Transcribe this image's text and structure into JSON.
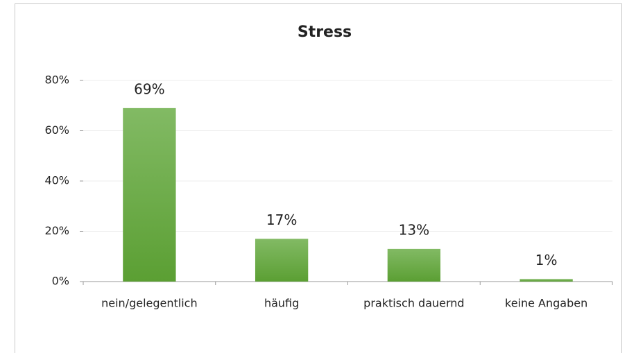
{
  "chart_data": {
    "type": "bar",
    "title": "Stress",
    "categories": [
      "nein/gelegentlich",
      "häufig",
      "praktisch dauernd",
      "keine Angaben"
    ],
    "values": [
      69,
      17,
      13,
      1
    ],
    "value_labels": [
      "69%",
      "17%",
      "13%",
      "1%"
    ],
    "color": "#6aab45",
    "ylim": [
      0,
      80
    ],
    "yticks": [
      {
        "value": 0,
        "label": "0%"
      },
      {
        "value": 20,
        "label": "20%"
      },
      {
        "value": 40,
        "label": "40%"
      },
      {
        "value": 60,
        "label": "60%"
      },
      {
        "value": 80,
        "label": "80%"
      }
    ],
    "grid": true
  }
}
